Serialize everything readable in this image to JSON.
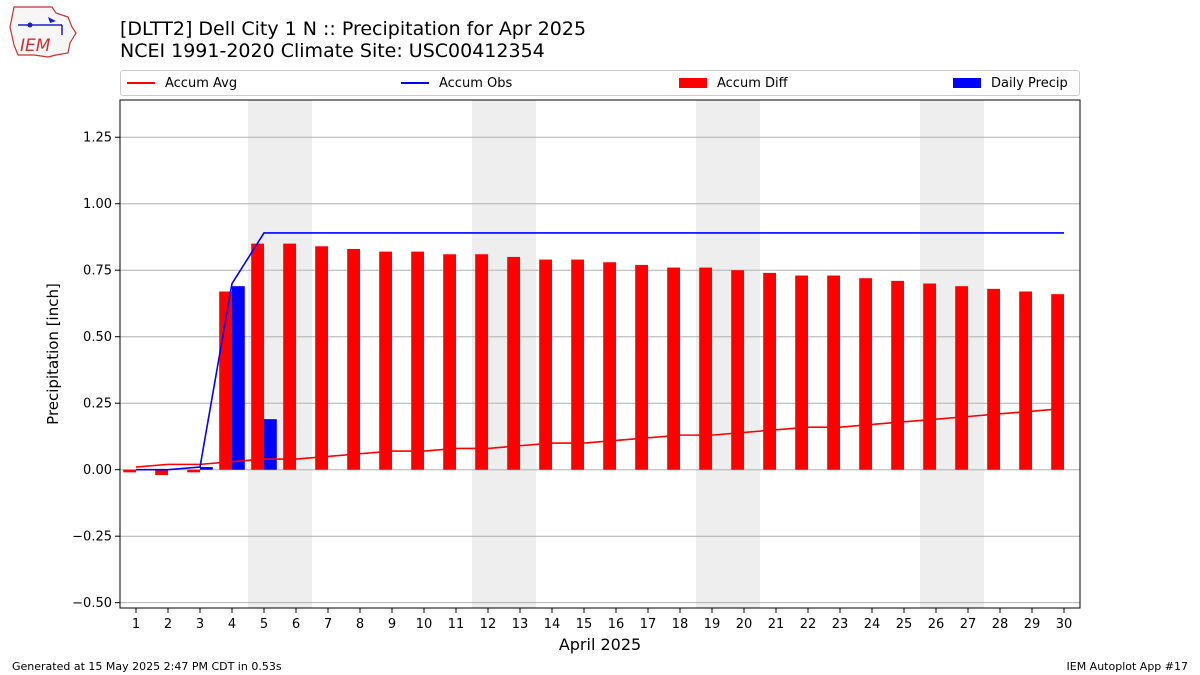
{
  "header": {
    "logo_text": "IEM",
    "title_line1": "[DLTT2] Dell City 1 N :: Precipitation for Apr 2025",
    "title_line2": "NCEI 1991-2020 Climate Site: USC00412354"
  },
  "legend": [
    {
      "label": "Accum Avg",
      "kind": "line",
      "color": "#ff0000"
    },
    {
      "label": "Accum Obs",
      "kind": "line",
      "color": "#0000ff"
    },
    {
      "label": "Accum Diff",
      "kind": "bar",
      "color": "#ff0000"
    },
    {
      "label": "Daily Precip",
      "kind": "bar",
      "color": "#0000ff"
    }
  ],
  "footer": {
    "left": "Generated at 15 May 2025 2:47 PM CDT in 0.53s",
    "right": "IEM Autoplot App #17"
  },
  "chart_data": {
    "type": "bar",
    "xlabel": "April 2025",
    "ylabel": "Precipitation [inch]",
    "x": [
      1,
      2,
      3,
      4,
      5,
      6,
      7,
      8,
      9,
      10,
      11,
      12,
      13,
      14,
      15,
      16,
      17,
      18,
      19,
      20,
      21,
      22,
      23,
      24,
      25,
      26,
      27,
      28,
      29,
      30
    ],
    "xlim": [
      0.5,
      30.5
    ],
    "ylim": [
      -0.52,
      1.39
    ],
    "yticks": [
      -0.5,
      -0.25,
      0.0,
      0.25,
      0.5,
      0.75,
      1.0,
      1.25
    ],
    "ytick_labels": [
      "−0.50",
      "−0.25",
      "0.00",
      "0.25",
      "0.50",
      "0.75",
      "1.00",
      "1.25"
    ],
    "grid": "horizontal",
    "legend_position": "top",
    "weekend_shading": [
      [
        4.5,
        6.5
      ],
      [
        11.5,
        13.5
      ],
      [
        18.5,
        20.5
      ],
      [
        25.5,
        27.5
      ]
    ],
    "series": [
      {
        "name": "Accum Avg",
        "type": "line",
        "color": "#ff0000",
        "values": [
          0.01,
          0.02,
          0.02,
          0.03,
          0.04,
          0.04,
          0.05,
          0.06,
          0.07,
          0.07,
          0.08,
          0.08,
          0.09,
          0.1,
          0.1,
          0.11,
          0.12,
          0.13,
          0.13,
          0.14,
          0.15,
          0.16,
          0.16,
          0.17,
          0.18,
          0.19,
          0.2,
          0.21,
          0.22,
          0.23
        ]
      },
      {
        "name": "Accum Obs",
        "type": "line",
        "color": "#0000ff",
        "values": [
          0.0,
          0.0,
          0.01,
          0.7,
          0.89,
          0.89,
          0.89,
          0.89,
          0.89,
          0.89,
          0.89,
          0.89,
          0.89,
          0.89,
          0.89,
          0.89,
          0.89,
          0.89,
          0.89,
          0.89,
          0.89,
          0.89,
          0.89,
          0.89,
          0.89,
          0.89,
          0.89,
          0.89,
          0.89,
          0.89
        ]
      },
      {
        "name": "Accum Diff",
        "type": "bar",
        "color": "#ff0000",
        "values": [
          -0.01,
          -0.02,
          -0.01,
          0.67,
          0.85,
          0.85,
          0.84,
          0.83,
          0.82,
          0.82,
          0.81,
          0.81,
          0.8,
          0.79,
          0.79,
          0.78,
          0.77,
          0.76,
          0.76,
          0.75,
          0.74,
          0.73,
          0.73,
          0.72,
          0.71,
          0.7,
          0.69,
          0.68,
          0.67,
          0.66
        ]
      },
      {
        "name": "Daily Precip",
        "type": "bar",
        "color": "#0000ff",
        "values": [
          0.0,
          0.0,
          0.01,
          0.69,
          0.19,
          0,
          0,
          0,
          0,
          0,
          0,
          0,
          0,
          0,
          0,
          0,
          0,
          0,
          0,
          0,
          0,
          0,
          0,
          0,
          0,
          0,
          0,
          0,
          0,
          0
        ]
      }
    ]
  }
}
